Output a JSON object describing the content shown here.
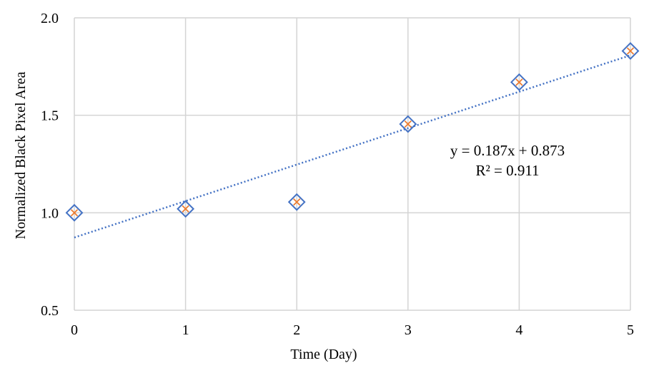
{
  "chart_data": {
    "type": "scatter",
    "xlabel": "Time (Day)",
    "ylabel": "Normalized Black Pixel Area",
    "xlim": [
      0,
      5
    ],
    "ylim": [
      0.5,
      2.0
    ],
    "x_ticks": [
      0,
      1,
      2,
      3,
      4,
      5
    ],
    "y_ticks": [
      "0.5",
      "1.0",
      "1.5",
      "2.0"
    ],
    "grid": true,
    "series": [
      {
        "marker_colors": {
          "diamond": "#4472C4",
          "cross": "#ED7D31"
        },
        "points": [
          {
            "x": 0,
            "y": 1.0
          },
          {
            "x": 1,
            "y": 1.02
          },
          {
            "x": 2,
            "y": 1.055
          },
          {
            "x": 3,
            "y": 1.455
          },
          {
            "x": 4,
            "y": 1.67
          },
          {
            "x": 5,
            "y": 1.83
          }
        ]
      }
    ],
    "trendline": {
      "slope": 0.187,
      "intercept": 0.873,
      "color": "#4472C4",
      "style": "dotted",
      "equation": "y = 0.187x + 0.873",
      "r_squared": "R² = 0.911"
    }
  }
}
